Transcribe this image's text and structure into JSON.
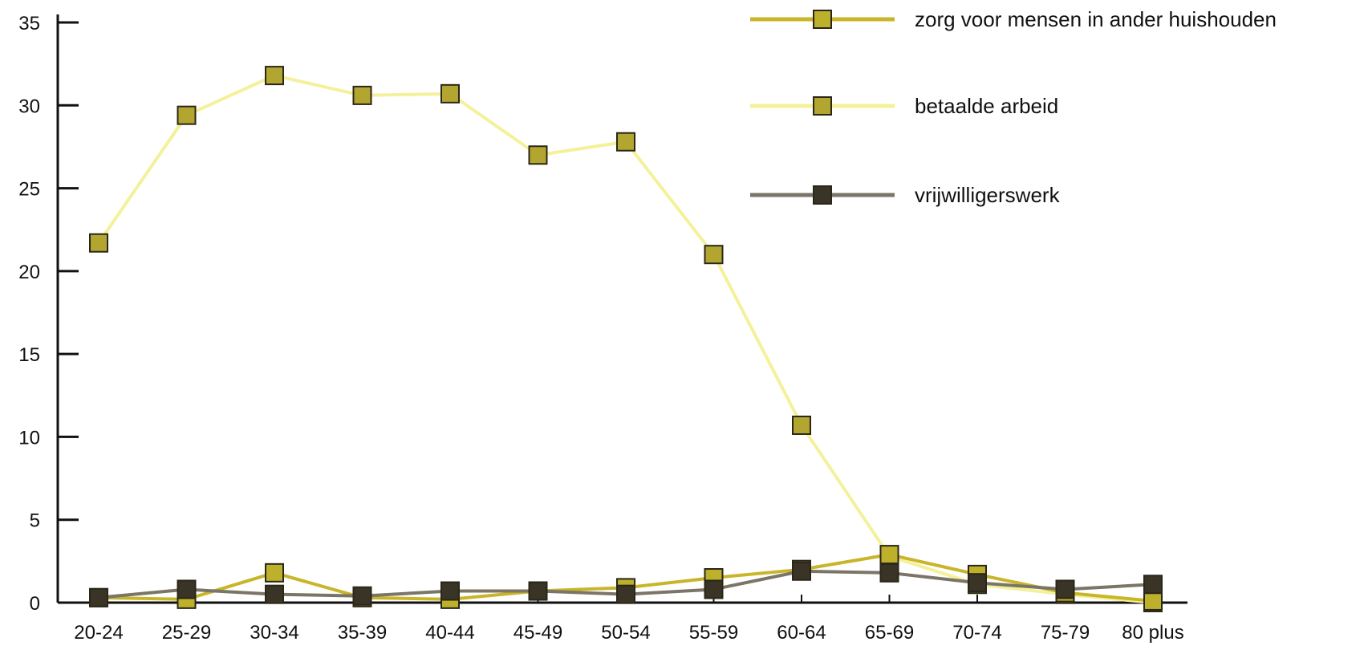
{
  "chart_data": {
    "type": "line",
    "categories": [
      "20-24",
      "25-29",
      "30-34",
      "35-39",
      "40-44",
      "45-49",
      "50-54",
      "55-59",
      "60-64",
      "65-69",
      "70-74",
      "75-79",
      "80 plus"
    ],
    "ylim": [
      0,
      35
    ],
    "y_ticks": [
      0,
      5,
      10,
      15,
      20,
      25,
      30,
      35
    ],
    "grid": false,
    "legend_position": "top-right",
    "series": [
      {
        "name": "zorg voor mensen in ander huishouden",
        "line_color": "#c9b52a",
        "marker_color": "#bdb02b",
        "values": [
          0.3,
          0.2,
          1.8,
          0.3,
          0.2,
          0.7,
          0.9,
          1.5,
          2.0,
          2.9,
          1.7,
          0.6,
          0.1
        ]
      },
      {
        "name": "betaalde arbeid",
        "line_color": "#f4f19a",
        "marker_color": "#b3a630",
        "values": [
          21.7,
          29.4,
          31.8,
          30.6,
          30.7,
          27.0,
          27.8,
          21.0,
          10.7,
          2.8,
          1.1,
          0.5,
          0.0
        ]
      },
      {
        "name": "vrijwilligerswerk",
        "line_color": "#7a7566",
        "marker_color": "#3a3426",
        "values": [
          0.3,
          0.8,
          0.5,
          0.4,
          0.7,
          0.7,
          0.5,
          0.8,
          1.9,
          1.8,
          1.2,
          0.8,
          1.1
        ]
      }
    ]
  }
}
